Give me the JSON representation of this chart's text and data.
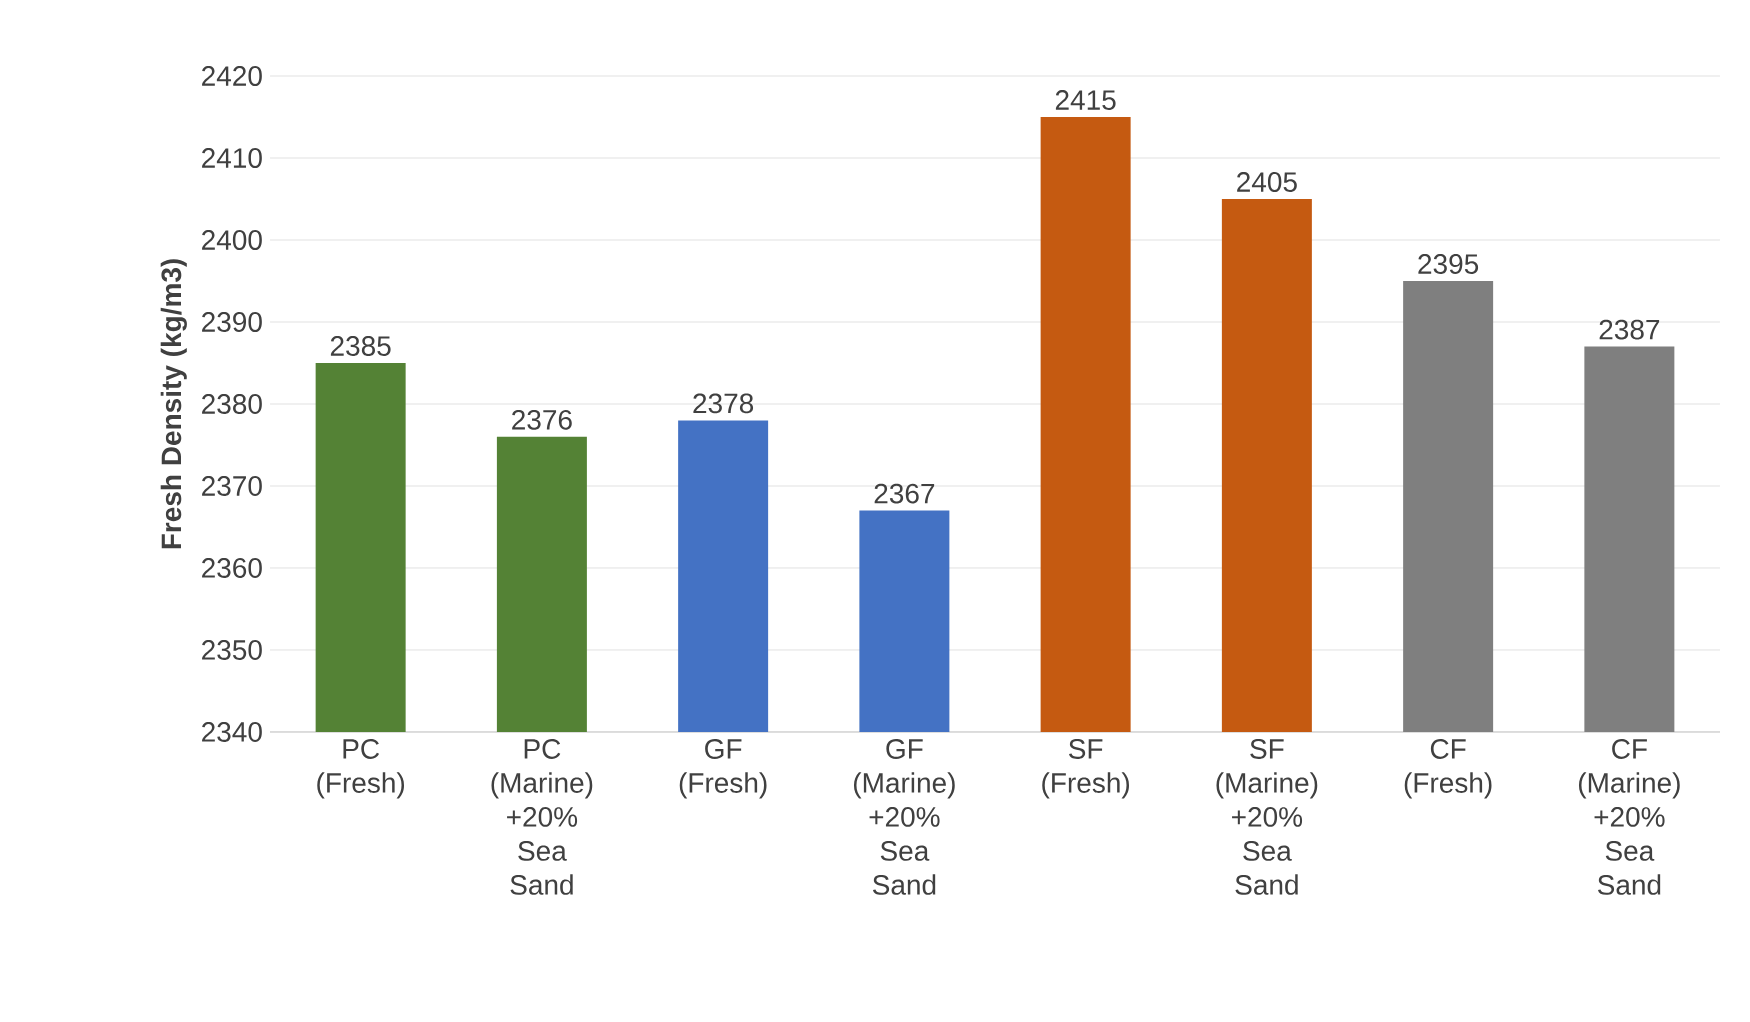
{
  "chart_data": {
    "type": "bar",
    "ylabel": "Fresh Density (kg/m3)",
    "categories": [
      "PC (Fresh)",
      "PC (Marine) +20% Sea Sand",
      "GF (Fresh)",
      "GF (Marine) +20% Sea Sand",
      "SF (Fresh)",
      "SF (Marine) +20% Sea Sand",
      "CF (Fresh)",
      "CF (Marine) +20% Sea Sand"
    ],
    "values": [
      2385,
      2376,
      2378,
      2367,
      2415,
      2405,
      2395,
      2387
    ],
    "colors": [
      "#548235",
      "#548235",
      "#4472c4",
      "#4472c4",
      "#c55a11",
      "#c55a11",
      "#7f7f7f",
      "#7f7f7f"
    ],
    "ylim": [
      2340,
      2420
    ],
    "yticks": [
      2340,
      2350,
      2360,
      2370,
      2380,
      2390,
      2400,
      2410,
      2420
    ],
    "grid": "y",
    "data_labels": true
  }
}
